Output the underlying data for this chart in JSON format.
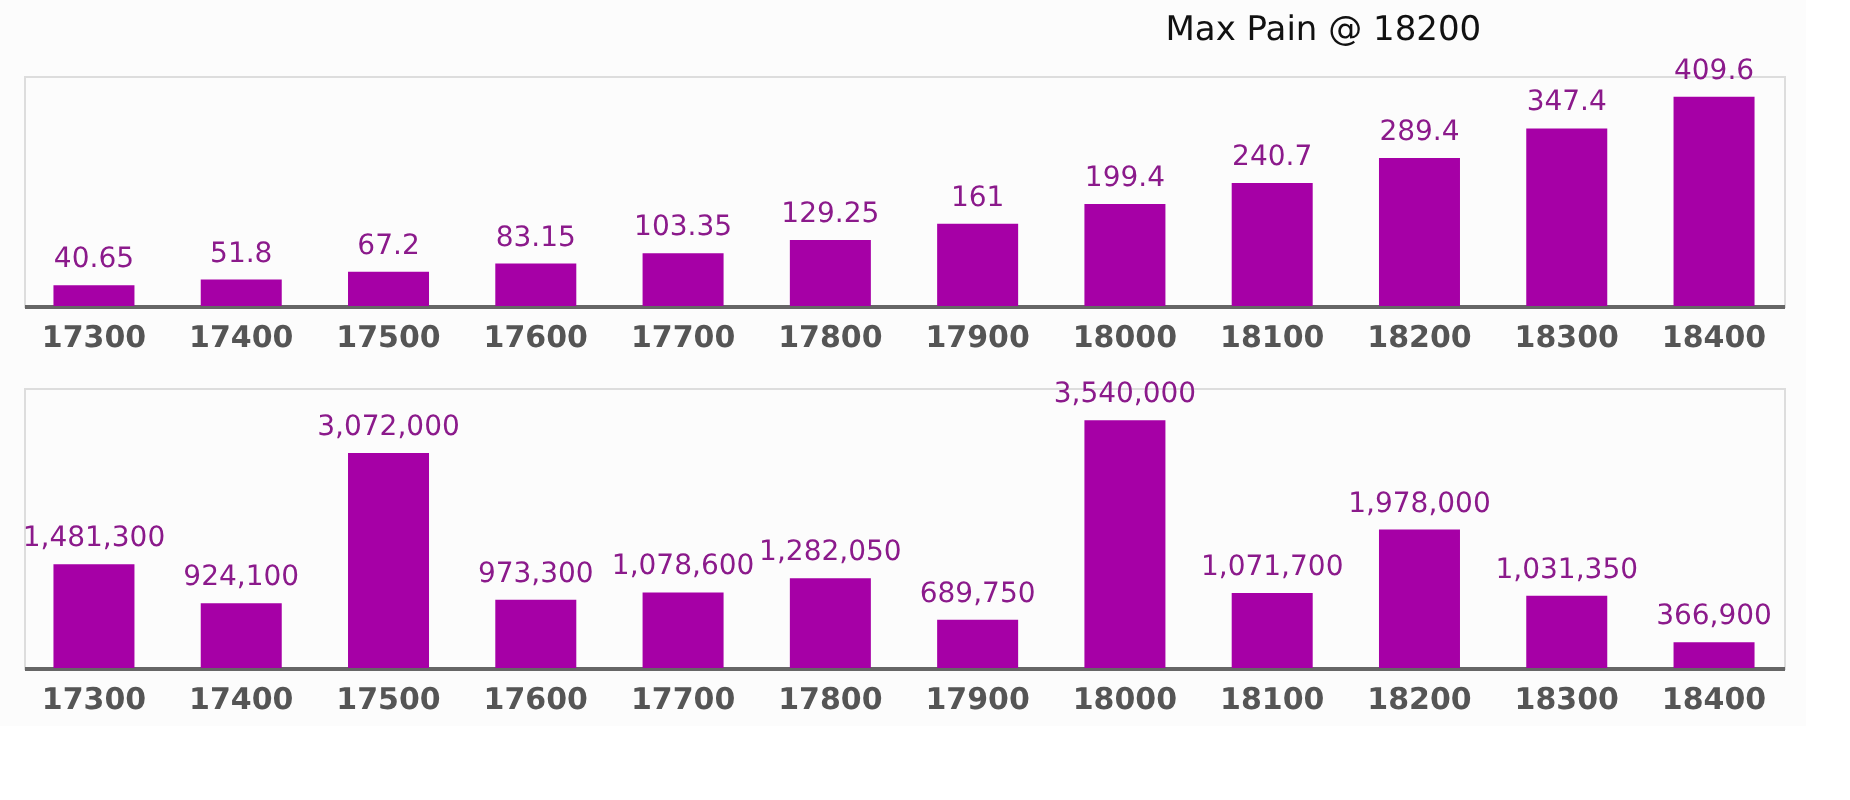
{
  "chart_data": [
    {
      "type": "bar",
      "title": "Max Pain @ 18200",
      "categories": [
        "17300",
        "17400",
        "17500",
        "17600",
        "17700",
        "17800",
        "17900",
        "18000",
        "18100",
        "18200",
        "18300",
        "18400"
      ],
      "series": [
        {
          "color": "#a600a6",
          "values": [
            40.65,
            51.8,
            67.2,
            83.15,
            103.35,
            129.25,
            161,
            199.4,
            240.7,
            289.4,
            347.4,
            409.6
          ]
        }
      ],
      "data_labels": true,
      "tick_labels": "x",
      "legend": false
    },
    {
      "type": "bar",
      "categories": [
        "17300",
        "17400",
        "17500",
        "17600",
        "17700",
        "17800",
        "17900",
        "18000",
        "18100",
        "18200",
        "18300",
        "18400"
      ],
      "series": [
        {
          "color": "#a600a6",
          "values": [
            1481300,
            924100,
            3072000,
            973300,
            1078600,
            1282050,
            689750,
            3540000,
            1071700,
            1978000,
            1031350,
            366900
          ],
          "value_labels": [
            "1,481,300",
            "924,100",
            "3,072,000",
            "973,300",
            "1,078,600",
            "1,282,050",
            "689,750",
            "3,540,000",
            "1,071,700",
            "1,978,000",
            "1,031,350",
            "366,900"
          ]
        }
      ],
      "tick_labels": "x",
      "legend": false
    }
  ]
}
